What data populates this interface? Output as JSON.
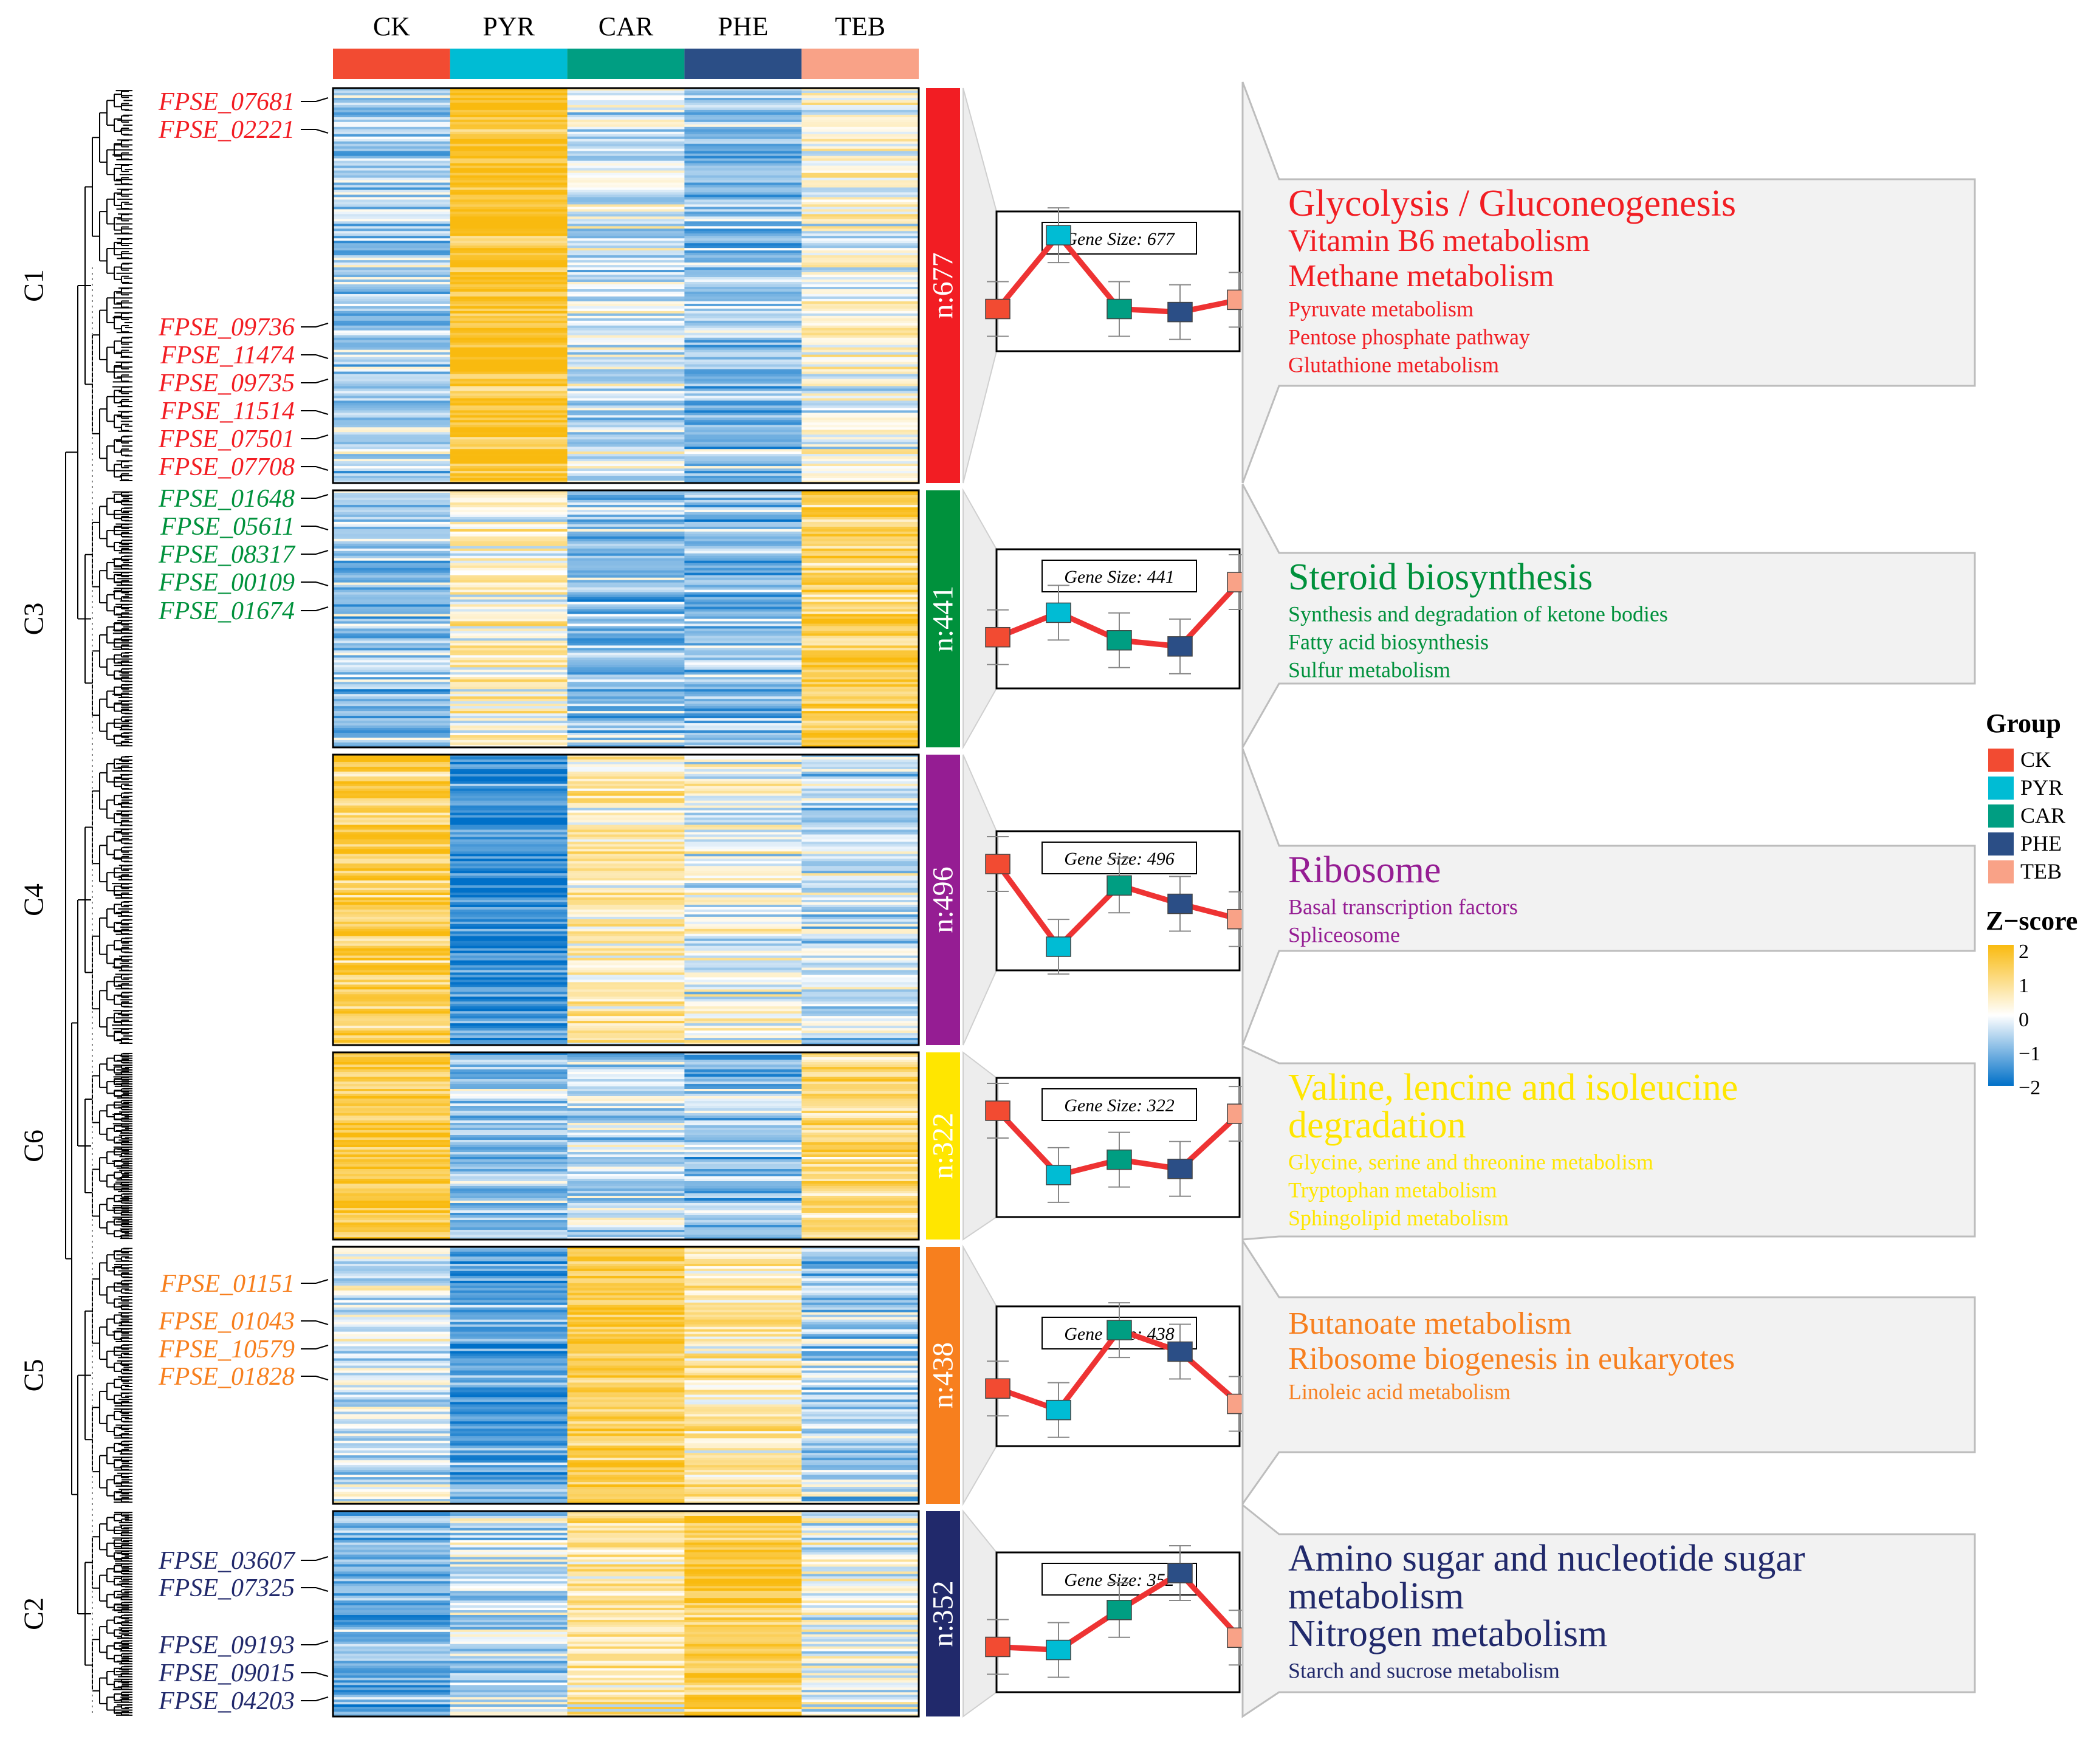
{
  "chart_data": {
    "type": "heatmap",
    "columns": [
      "CK",
      "PYR",
      "CAR",
      "PHE",
      "TEB"
    ],
    "column_colors": [
      "#F24B32",
      "#00BCD4",
      "#009E82",
      "#2B4E86",
      "#F9A287"
    ],
    "legend": {
      "group_title": "Group",
      "zscore_title": "Z−score",
      "zscore_ticks": [
        "2",
        "1",
        "0",
        "−1",
        "−2"
      ],
      "zscore_range": [
        -2,
        2
      ],
      "colors": {
        "low": "#0070C8",
        "mid": "#FFFFFF",
        "high": "#F9BA0F"
      }
    },
    "clusters": [
      {
        "id": "C1",
        "count_label": "n:677",
        "count": 677,
        "color": "#F21D23",
        "box_label": "Gene Size: 677",
        "column_means": [
          -0.6,
          1.7,
          -0.3,
          -0.8,
          0.1
        ],
        "profile": [
          -0.9,
          1.5,
          -0.9,
          -1.0,
          -0.6
        ],
        "genes": [
          "FPSE_07681",
          "FPSE_02221",
          "FPSE_09736",
          "FPSE_11474",
          "FPSE_09735",
          "FPSE_11514",
          "FPSE_07501",
          "FPSE_07708"
        ],
        "pathways": [
          {
            "name": "Glycolysis / Gluconeogenesis",
            "size": "xl"
          },
          {
            "name": "Vitamin B6 metabolism",
            "size": "l"
          },
          {
            "name": "Methane metabolism",
            "size": "l"
          },
          {
            "name": "Pyruvate metabolism",
            "size": "s"
          },
          {
            "name": "Pentose phosphate pathway",
            "size": "s"
          },
          {
            "name": "Glutathione metabolism",
            "size": "s"
          }
        ]
      },
      {
        "id": "C3",
        "count_label": "n:441",
        "count": 441,
        "color": "#00913C",
        "box_label": "Gene Size: 441",
        "column_means": [
          -0.7,
          0.3,
          -0.8,
          -0.9,
          1.3
        ],
        "profile": [
          -0.6,
          0.2,
          -0.7,
          -0.9,
          1.2
        ],
        "genes": [
          "FPSE_01648",
          "FPSE_05611",
          "FPSE_08317",
          "FPSE_00109",
          "FPSE_01674"
        ],
        "pathways": [
          {
            "name": "Steroid biosynthesis",
            "size": "xl"
          },
          {
            "name": "Synthesis and degradation of ketone bodies",
            "size": "s"
          },
          {
            "name": "Fatty acid biosynthesis",
            "size": "s"
          },
          {
            "name": "Sulfur metabolism",
            "size": "s"
          }
        ]
      },
      {
        "id": "C4",
        "count_label": "n:496",
        "count": 496,
        "color": "#951D93",
        "box_label": "Gene Size: 496",
        "column_means": [
          1.3,
          -1.5,
          0.5,
          0.0,
          -0.4
        ],
        "profile": [
          1.2,
          -1.5,
          0.5,
          -0.1,
          -0.6
        ],
        "genes": [],
        "pathways": [
          {
            "name": "Ribosome",
            "size": "xl"
          },
          {
            "name": "Basal transcription factors",
            "size": "s"
          },
          {
            "name": "Spliceosome",
            "size": "s"
          }
        ]
      },
      {
        "id": "C6",
        "count_label": "n:322",
        "count": 322,
        "color": "#FFE600",
        "box_label": "Gene Size: 322",
        "column_means": [
          1.3,
          -0.8,
          -0.5,
          -0.9,
          0.9
        ],
        "profile": [
          1.2,
          -0.9,
          -0.4,
          -0.7,
          1.1
        ],
        "genes": [],
        "pathways": [
          {
            "name": "Valine, lencine and isoleucine",
            "size": "xl"
          },
          {
            "name": "degradation",
            "size": "xl"
          },
          {
            "name": "Glycine, serine and threonine metabolism",
            "size": "s"
          },
          {
            "name": "Tryptophan metabolism",
            "size": "s"
          },
          {
            "name": "Sphingolipid metabolism",
            "size": "s"
          }
        ]
      },
      {
        "id": "C5",
        "count_label": "n:438",
        "count": 438,
        "color": "#F77F1E",
        "box_label": "Gene Size: 438",
        "column_means": [
          -0.2,
          -1.2,
          1.4,
          0.7,
          -0.6
        ],
        "profile": [
          -0.4,
          -1.1,
          1.5,
          0.8,
          -0.9
        ],
        "genes": [
          "FPSE_01151",
          "FPSE_01043",
          "FPSE_10579",
          "FPSE_01828"
        ],
        "pathways": [
          {
            "name": "Butanoate metabolism",
            "size": "l"
          },
          {
            "name": "Ribosome biogenesis in eukaryotes",
            "size": "l"
          },
          {
            "name": "Linoleic acid metabolism",
            "size": "s"
          }
        ]
      },
      {
        "id": "C2",
        "count_label": "n:352",
        "count": 352,
        "color": "#21296B",
        "box_label": "Gene Size: 352",
        "column_means": [
          -0.9,
          -0.4,
          0.6,
          1.5,
          0.0
        ],
        "profile": [
          -0.8,
          -0.9,
          0.4,
          1.6,
          -0.5
        ],
        "genes": [
          "FPSE_03607",
          "FPSE_07325",
          "FPSE_09193",
          "FPSE_09015",
          "FPSE_04203"
        ],
        "pathways": [
          {
            "name": "Amino sugar and nucleotide sugar",
            "size": "xl"
          },
          {
            "name": "metabolism",
            "size": "xl"
          },
          {
            "name": "Nitrogen metabolism",
            "size": "xl"
          },
          {
            "name": "Starch and sucrose metabolism",
            "size": "s"
          }
        ]
      }
    ]
  }
}
